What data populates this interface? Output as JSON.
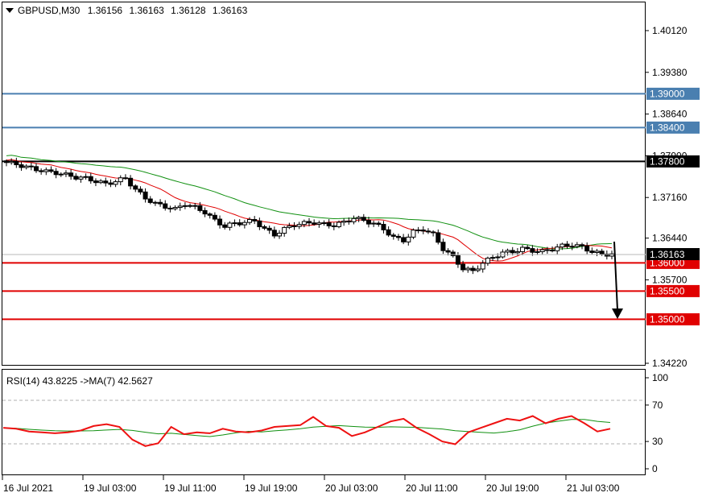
{
  "header": {
    "symbol": "GBPUSD,M30",
    "open": "1.36156",
    "high": "1.36163",
    "low": "1.36128",
    "close": "1.36163"
  },
  "rsi_header": "RSI(14) 43.8225  ->MA(7) 42.5627",
  "price_axis_labels": [
    "1.40120",
    "1.39380",
    "1.38640",
    "1.37900",
    "1.37160",
    "1.36440",
    "1.35700",
    "1.34220"
  ],
  "current_price_label": "1.36163",
  "levels": [
    {
      "value": "1.39000",
      "color": "#4a7fb0"
    },
    {
      "value": "1.38400",
      "color": "#4a7fb0"
    },
    {
      "value": "1.37800",
      "color": "#000000"
    },
    {
      "value": "1.36000",
      "color": "#e00000"
    },
    {
      "value": "1.35500",
      "color": "#e00000"
    },
    {
      "value": "1.35000",
      "color": "#e00000"
    }
  ],
  "rsi_axis_labels": [
    "100",
    "70",
    "30",
    "0"
  ],
  "time_labels": [
    "16 Jul 2021",
    "19 Jul 03:00",
    "19 Jul 11:00",
    "19 Jul 19:00",
    "20 Jul 03:00",
    "20 Jul 11:00",
    "20 Jul 19:00",
    "21 Jul 03:00"
  ],
  "colors": {
    "up_candle": "#ffffff",
    "down_candle": "#000000",
    "fast_ma": "#e00000",
    "slow_ma": "#109010",
    "rsi": "#ee1111",
    "rsi_ma": "#109010",
    "arrow": "#000000"
  },
  "chart_data": {
    "type": "line",
    "symbol": "GBPUSD",
    "timeframe": "M30",
    "price_range": [
      1.3418,
      1.4035
    ],
    "rsi_range": [
      0,
      100
    ],
    "horizontal_levels": [
      1.39,
      1.384,
      1.378,
      1.36,
      1.355,
      1.35
    ],
    "close_path": [
      1.3778,
      1.3775,
      1.377,
      1.3766,
      1.3762,
      1.376,
      1.3756,
      1.3752,
      1.375,
      1.3745,
      1.374,
      1.3745,
      1.375,
      1.373,
      1.3715,
      1.3705,
      1.37,
      1.3695,
      1.3705,
      1.3698,
      1.369,
      1.3675,
      1.3665,
      1.367,
      1.3672,
      1.3675,
      1.366,
      1.365,
      1.366,
      1.3668,
      1.367,
      1.3672,
      1.3668,
      1.3667,
      1.3672,
      1.368,
      1.3675,
      1.367,
      1.366,
      1.3645,
      1.364,
      1.3655,
      1.366,
      1.365,
      1.3625,
      1.361,
      1.359,
      1.3585,
      1.36,
      1.361,
      1.3618,
      1.362,
      1.3625,
      1.3622,
      1.362,
      1.3625,
      1.363,
      1.3632,
      1.3628,
      1.362,
      1.3615,
      1.3616
    ],
    "rsi_values": [
      45,
      44,
      41,
      40,
      39,
      40,
      42,
      47,
      49,
      46,
      32,
      25,
      28,
      46,
      38,
      40,
      39,
      44,
      41,
      40,
      42,
      46,
      47,
      48,
      57,
      47,
      45,
      36,
      40,
      46,
      52,
      55,
      45,
      38,
      30,
      27,
      40,
      45,
      50,
      55,
      53,
      58,
      50,
      55,
      58,
      50,
      41,
      44
    ]
  }
}
